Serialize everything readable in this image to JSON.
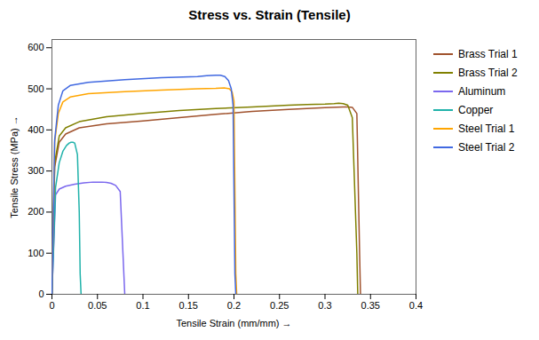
{
  "chart_data": {
    "type": "line",
    "title": "Stress vs. Strain (Tensile)",
    "xlabel": "Tensile Strain (mm/mm)",
    "ylabel": "Tensile Stress (MPa)",
    "xlim": [
      0,
      0.4
    ],
    "ylim": [
      0,
      620
    ],
    "xticks": [
      0,
      0.05,
      0.1,
      0.15,
      0.2,
      0.25,
      0.3,
      0.35,
      0.4
    ],
    "yticks": [
      0,
      100,
      200,
      300,
      400,
      500,
      600
    ],
    "grid": false,
    "legend": "right",
    "series": [
      {
        "name": "Brass Trial 1",
        "color": "#A0522D",
        "x": [
          0,
          0.003,
          0.008,
          0.015,
          0.03,
          0.06,
          0.1,
          0.14,
          0.18,
          0.22,
          0.26,
          0.28,
          0.3,
          0.32,
          0.325,
          0.33,
          0.335,
          0.338,
          0.339
        ],
        "values": [
          0,
          310,
          370,
          390,
          405,
          415,
          422,
          430,
          438,
          445,
          450,
          452,
          454,
          456,
          456,
          455,
          440,
          100,
          0
        ]
      },
      {
        "name": "Brass Trial 2",
        "color": "#808000",
        "x": [
          0,
          0.003,
          0.008,
          0.015,
          0.03,
          0.06,
          0.1,
          0.14,
          0.18,
          0.22,
          0.26,
          0.28,
          0.3,
          0.31,
          0.315,
          0.32,
          0.325,
          0.33,
          0.335,
          0.336
        ],
        "values": [
          0,
          320,
          385,
          405,
          420,
          432,
          440,
          447,
          452,
          456,
          460,
          462,
          463,
          464,
          465,
          464,
          460,
          430,
          100,
          0
        ]
      },
      {
        "name": "Aluminum",
        "color": "#7B68EE",
        "x": [
          0,
          0.004,
          0.008,
          0.015,
          0.025,
          0.035,
          0.045,
          0.05,
          0.055,
          0.06,
          0.065,
          0.07,
          0.075,
          0.078,
          0.08
        ],
        "values": [
          0,
          242,
          256,
          263,
          268,
          271,
          273,
          273,
          273,
          272,
          270,
          265,
          250,
          100,
          0
        ]
      },
      {
        "name": "Copper",
        "color": "#20B2AA",
        "x": [
          0,
          0.004,
          0.008,
          0.012,
          0.016,
          0.019,
          0.021,
          0.023,
          0.025,
          0.028,
          0.03,
          0.031,
          0.032
        ],
        "values": [
          0,
          260,
          320,
          348,
          362,
          368,
          370,
          370,
          368,
          340,
          200,
          50,
          0
        ]
      },
      {
        "name": "Steel Trial 1",
        "color": "#FFA500",
        "x": [
          0,
          0.003,
          0.007,
          0.012,
          0.02,
          0.04,
          0.08,
          0.12,
          0.16,
          0.18,
          0.19,
          0.195,
          0.198,
          0.2,
          0.202,
          0.203
        ],
        "values": [
          0,
          370,
          440,
          468,
          480,
          488,
          493,
          497,
          500,
          501,
          502,
          500,
          492,
          470,
          50,
          0
        ]
      },
      {
        "name": "Steel Trial 2",
        "color": "#4169E1",
        "x": [
          0,
          0.003,
          0.007,
          0.012,
          0.02,
          0.04,
          0.08,
          0.12,
          0.16,
          0.17,
          0.18,
          0.185,
          0.19,
          0.194,
          0.197,
          0.199,
          0.201,
          0.202
        ],
        "values": [
          0,
          375,
          460,
          495,
          508,
          516,
          522,
          527,
          530,
          532,
          533,
          533,
          530,
          520,
          500,
          460,
          50,
          0
        ]
      }
    ]
  }
}
